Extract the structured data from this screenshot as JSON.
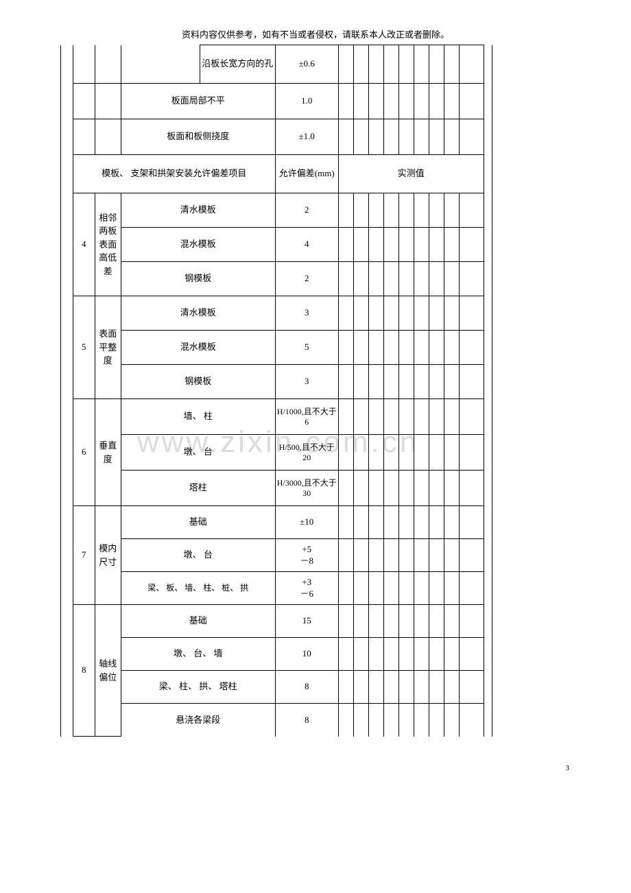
{
  "header_note": "资料内容仅供参考，如有不当或者侵权，请联系本人改正或者删除。",
  "watermark": "www.zixin.com.cn",
  "page_number": "3",
  "rows_top": [
    {
      "desc": "沿板长宽方向的孔",
      "tol": "±0.6"
    },
    {
      "desc": "板面局部不平",
      "tol": "1.0"
    },
    {
      "desc": "板面和板侧挠度",
      "tol": "±1.0"
    }
  ],
  "section_header": {
    "left": "模板、 支架和拱架安装允许偏差项目",
    "tol_label": "允许偏差(mm)",
    "meas_label": "实测值"
  },
  "groups": [
    {
      "idx": "4",
      "cat": "相邻两板表面高低差",
      "items": [
        {
          "desc": "清水模板",
          "tol": "2"
        },
        {
          "desc": "混水模板",
          "tol": "4"
        },
        {
          "desc": "钢模板",
          "tol": "2"
        }
      ]
    },
    {
      "idx": "5",
      "cat": "表面平整度",
      "items": [
        {
          "desc": "清水模板",
          "tol": "3"
        },
        {
          "desc": "混水模板",
          "tol": "5"
        },
        {
          "desc": "钢模板",
          "tol": "3"
        }
      ]
    },
    {
      "idx": "6",
      "cat": "垂直度",
      "items": [
        {
          "desc": "墙、 柱",
          "tol": "H/1000,且不大于6"
        },
        {
          "desc": "墩、 台",
          "tol": "H/500,且不大于20"
        },
        {
          "desc": "塔柱",
          "tol": "H/3000,且不大于30"
        }
      ]
    },
    {
      "idx": "7",
      "cat": "模内尺寸",
      "items": [
        {
          "desc": "基础",
          "tol": "±10"
        },
        {
          "desc": "墩、 台",
          "tol": "+5\n－8"
        },
        {
          "desc": "梁、 板、 墙、 柱、 桩、 拱",
          "tol": "+3\n－6"
        }
      ]
    },
    {
      "idx": "8",
      "cat": "轴线偏位",
      "items": [
        {
          "desc": "基础",
          "tol": "15"
        },
        {
          "desc": "墩、 台、 墙",
          "tol": "10"
        },
        {
          "desc": "梁、 柱、 拱、 塔柱",
          "tol": "8"
        },
        {
          "desc": "悬浇各梁段",
          "tol": "8"
        }
      ]
    }
  ]
}
